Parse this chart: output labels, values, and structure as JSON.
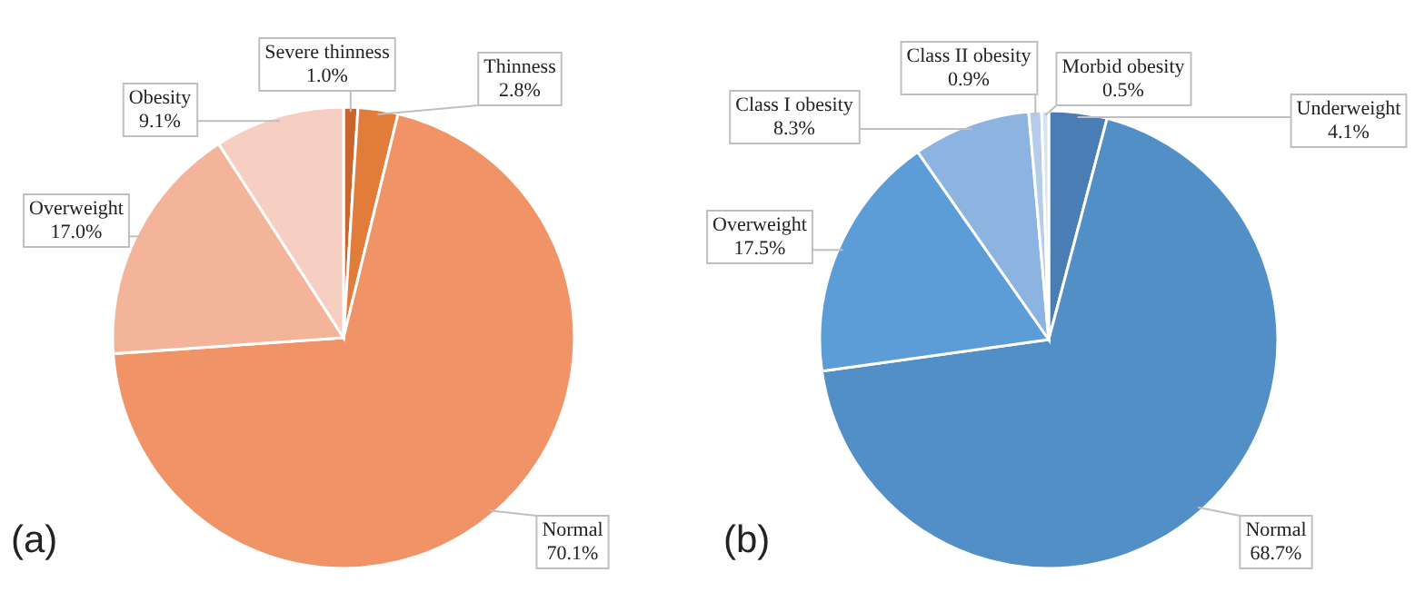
{
  "chart_data": [
    {
      "type": "pie",
      "title": "(a)",
      "categories": [
        "Severe thinness",
        "Thinness",
        "Normal",
        "Overweight",
        "Obesity"
      ],
      "values": [
        1.0,
        2.8,
        70.1,
        17.0,
        9.1
      ],
      "colors": [
        "#c8662e",
        "#e27c3a",
        "#f09467",
        "#f3b49a",
        "#f7cfc2"
      ],
      "value_labels": [
        "1.0%",
        "2.8%",
        "70.1%",
        "17.0%",
        "9.1%"
      ]
    },
    {
      "type": "pie",
      "title": "(b)",
      "categories": [
        "Underweight",
        "Normal",
        "Overweight",
        "Class I obesity",
        "Class II obesity",
        "Morbid obesity"
      ],
      "values": [
        4.1,
        68.7,
        17.5,
        8.3,
        0.9,
        0.5
      ],
      "colors": [
        "#4a7db4",
        "#528fc6",
        "#5c9dd8",
        "#8db3e0",
        "#b5cde9",
        "#d5e3f3"
      ],
      "value_labels": [
        "4.1%",
        "68.7%",
        "17.5%",
        "8.3%",
        "0.9%",
        "0.5%"
      ]
    }
  ]
}
